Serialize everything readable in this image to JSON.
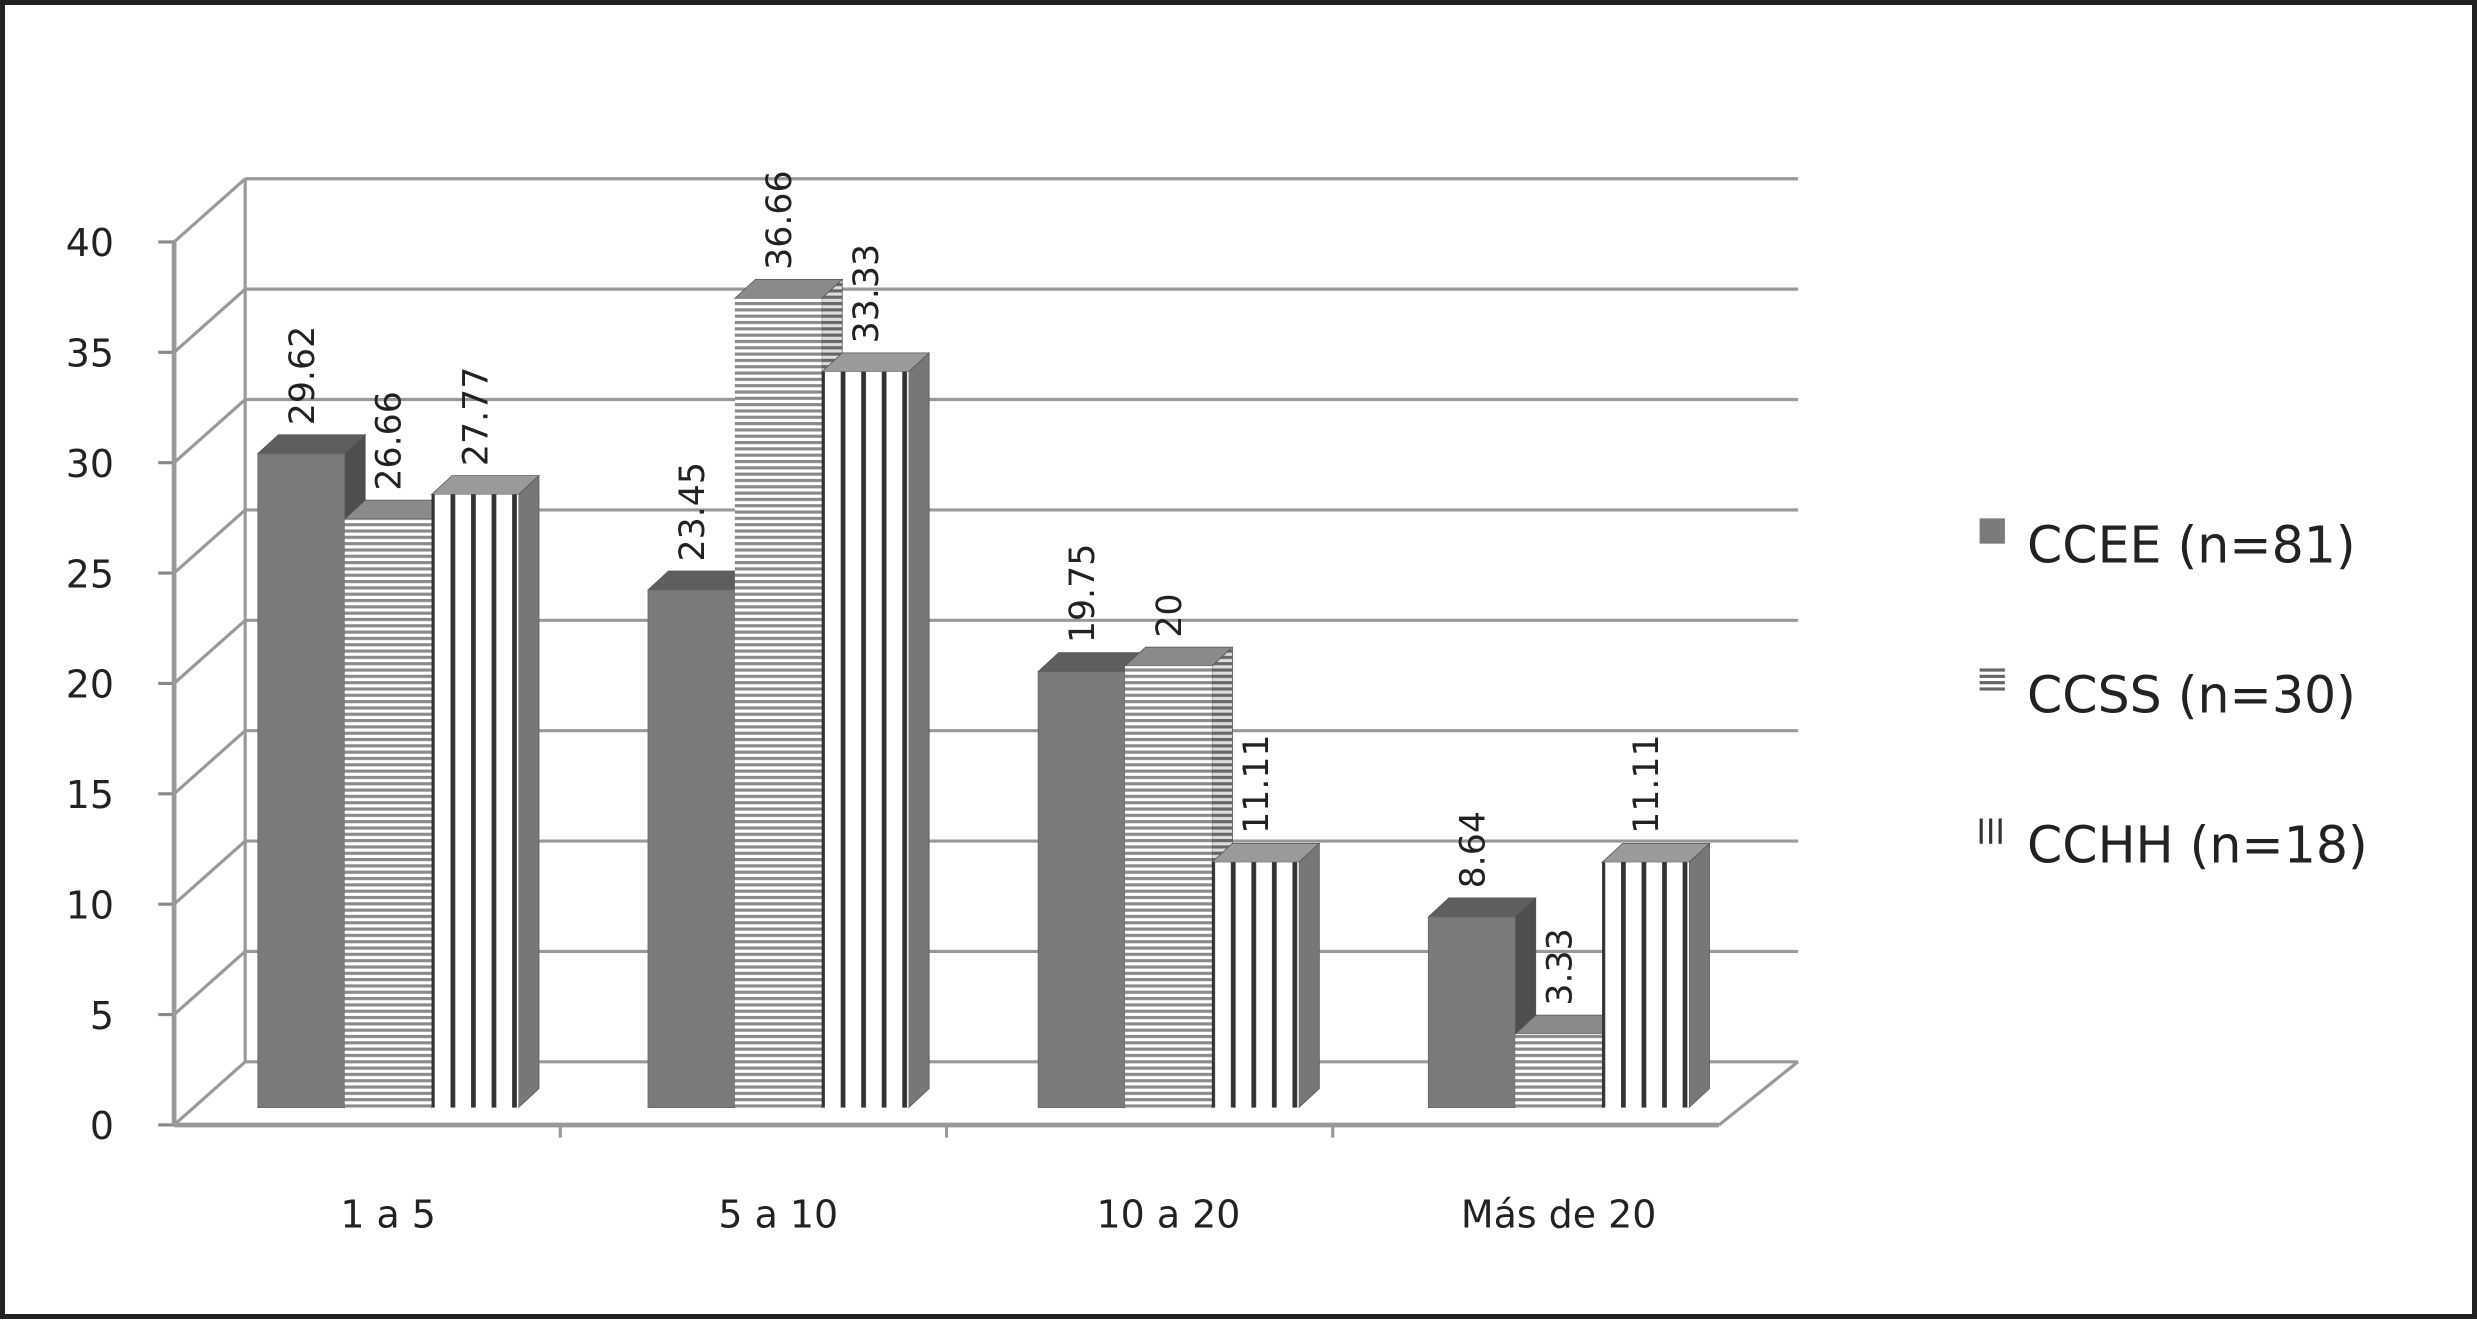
{
  "chart_data": {
    "type": "bar",
    "title": "",
    "xlabel": "",
    "ylabel": "",
    "ylim": [
      0,
      40
    ],
    "yticks": [
      0,
      5,
      10,
      15,
      20,
      25,
      30,
      35,
      40
    ],
    "categories": [
      "1 a 5",
      "5 a 10",
      "10 a 20",
      "Más de 20"
    ],
    "series": [
      {
        "name": "CCEE (n=81)",
        "pattern": "solid",
        "color": "#7a7a7a",
        "values": [
          29.62,
          23.45,
          19.75,
          8.64
        ],
        "labels": [
          "29.62",
          "23.45",
          "19.75",
          "8.64"
        ]
      },
      {
        "name": "CCSS (n=30)",
        "pattern": "horizontal-lines",
        "color": "#8a8a8a",
        "values": [
          26.66,
          36.66,
          20,
          3.33
        ],
        "labels": [
          "26.66",
          "36.66",
          "20",
          "3.33"
        ]
      },
      {
        "name": "CCHH (n=18)",
        "pattern": "vertical-lines",
        "color": "#333333",
        "values": [
          27.77,
          33.33,
          11.11,
          11.11
        ],
        "labels": [
          "27.77",
          "33.33",
          "11.11",
          "11.11"
        ]
      }
    ],
    "grid": true,
    "legend_position": "right",
    "style": "3d-clustered-column"
  }
}
